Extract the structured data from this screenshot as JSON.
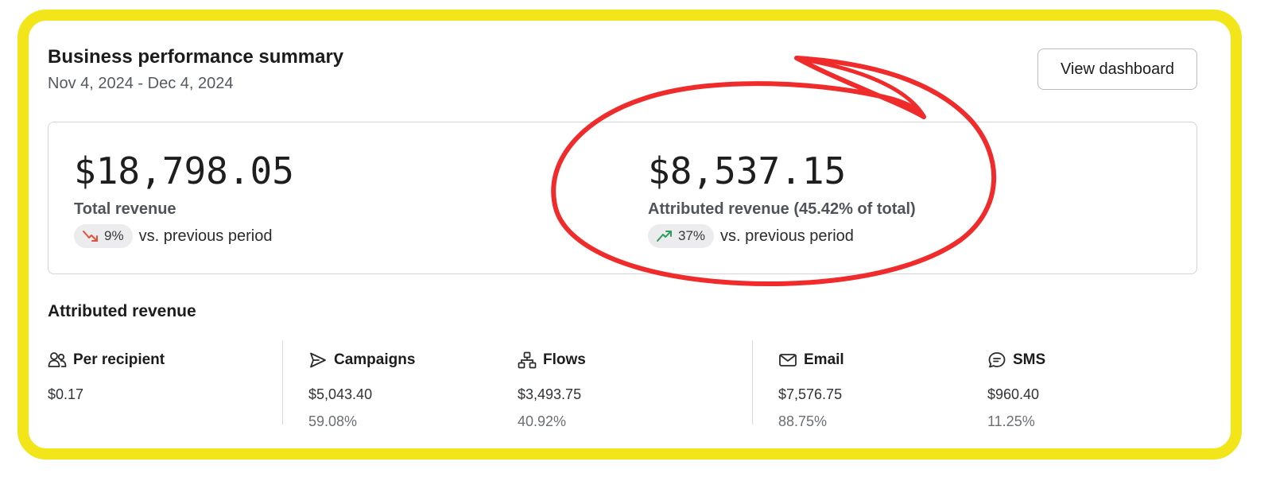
{
  "header": {
    "title": "Business performance summary",
    "date_range": "Nov 4, 2024 - Dec 4, 2024",
    "view_dashboard_label": "View dashboard"
  },
  "summary": {
    "total": {
      "value": "$18,798.05",
      "label": "Total revenue",
      "change": "9%",
      "change_direction": "down",
      "comparison": "vs. previous period"
    },
    "attributed": {
      "value": "$8,537.15",
      "label": "Attributed revenue (45.42% of total)",
      "change": "37%",
      "change_direction": "up",
      "comparison": "vs. previous period"
    }
  },
  "attributed_section": {
    "title": "Attributed revenue",
    "columns": [
      {
        "label": "Per recipient",
        "icon": "people-icon",
        "value": "$0.17",
        "percent": ""
      },
      {
        "label": "Campaigns",
        "icon": "send-icon",
        "value": "$5,043.40",
        "percent": "59.08%"
      },
      {
        "label": "Flows",
        "icon": "flow-icon",
        "value": "$3,493.75",
        "percent": "40.92%"
      },
      {
        "label": "Email",
        "icon": "mail-icon",
        "value": "$7,576.75",
        "percent": "88.75%"
      },
      {
        "label": "SMS",
        "icon": "chat-icon",
        "value": "$960.40",
        "percent": "11.25%"
      }
    ]
  },
  "colors": {
    "highlight_frame": "#f2e51a",
    "annotation_circle": "#ef2b2b",
    "trend_down": "#e0523a",
    "trend_up": "#2e9e5b"
  }
}
